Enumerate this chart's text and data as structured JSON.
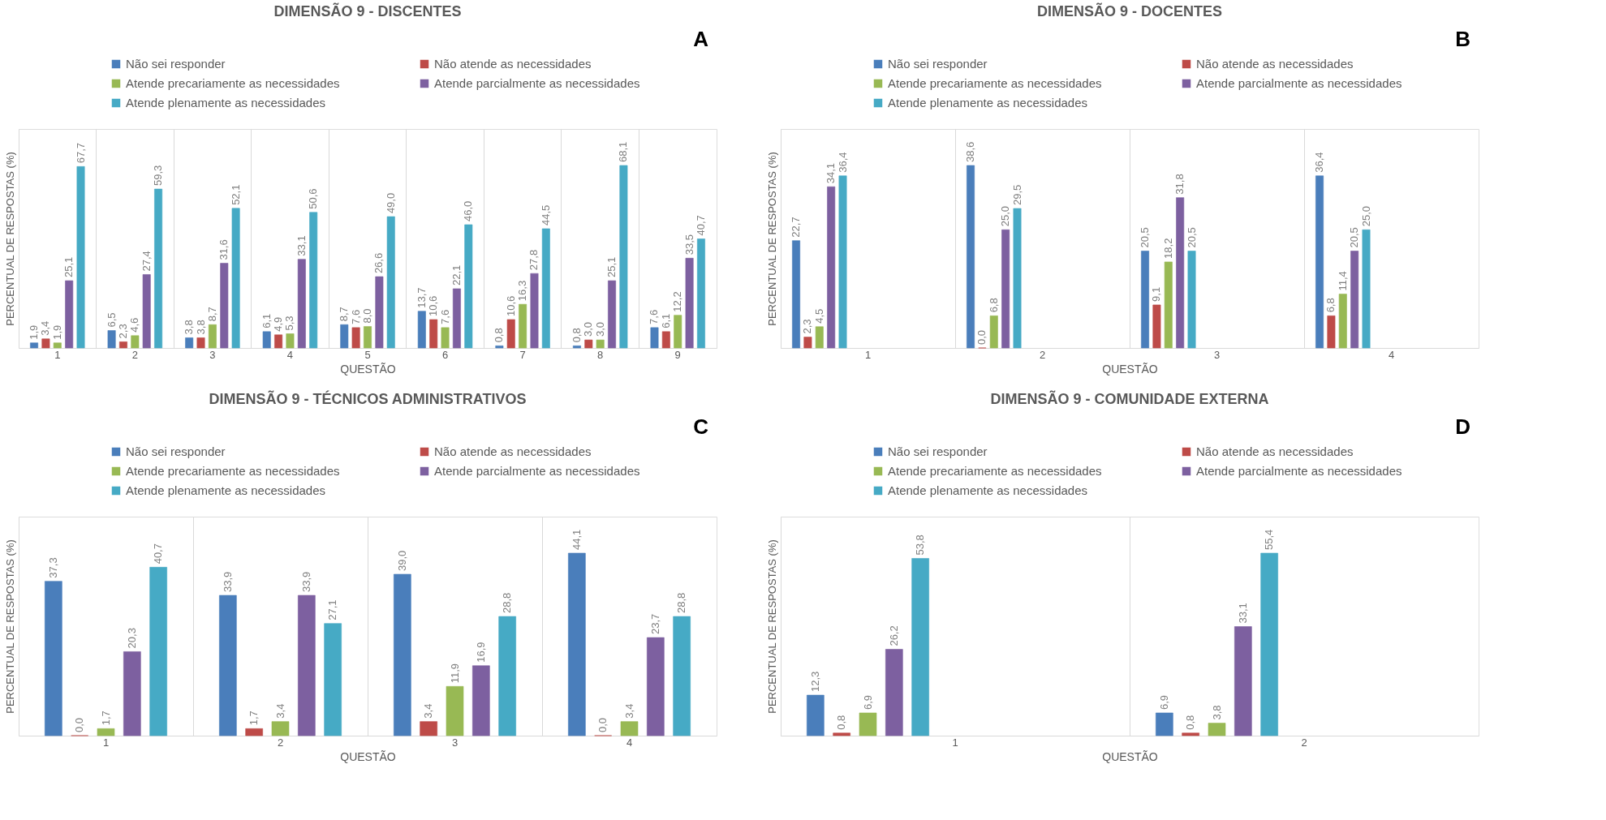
{
  "chart_data": [
    {
      "type": "bar",
      "title": "DIMENSÃO 9 - DISCENTES",
      "xlabel": "QUESTÃO",
      "ylabel": "PERCENTUAL DE RESPOSTAS (%)",
      "legend": "top",
      "grid": "x",
      "annotations": [
        "A"
      ],
      "categories": [
        "1",
        "2",
        "3",
        "4",
        "5",
        "6",
        "7",
        "8",
        "9"
      ],
      "series": [
        {
          "name": "Não sei responder",
          "color": "#4a7ebb",
          "values": [
            1.9,
            6.5,
            3.8,
            6.1,
            8.7,
            13.7,
            0.8,
            0.8,
            7.6
          ],
          "value_labels": [
            "1,9",
            "6,5",
            "3,8",
            "6,1",
            "8,7",
            "13,7",
            "0,8",
            "0,8",
            "7,6"
          ]
        },
        {
          "name": "Não atende as necessidades",
          "color": "#be4b48",
          "values": [
            3.4,
            2.3,
            3.8,
            4.9,
            7.6,
            10.6,
            10.6,
            3.0,
            6.1
          ],
          "value_labels": [
            "3,4",
            "2,3",
            "3,8",
            "4,9",
            "7,6",
            "10,6",
            "10,6",
            "3,0",
            "6,1"
          ]
        },
        {
          "name": "Atende precariamente as necessidades",
          "color": "#98b954",
          "values": [
            1.9,
            4.6,
            8.7,
            5.3,
            8.0,
            7.6,
            16.3,
            3.0,
            12.2
          ],
          "value_labels": [
            "1,9",
            "4,6",
            "8,7",
            "5,3",
            "8,0",
            "7,6",
            "16,3",
            "3,0",
            "12,2"
          ]
        },
        {
          "name": "Atende parcialmente as necessidades",
          "color": "#7d60a0",
          "values": [
            25.1,
            27.4,
            31.6,
            33.1,
            26.6,
            22.1,
            27.8,
            25.1,
            33.5
          ],
          "value_labels": [
            "25,1",
            "27,4",
            "31,6",
            "33,1",
            "26,6",
            "22,1",
            "27,8",
            "25,1",
            "33,5"
          ]
        },
        {
          "name": "Atende plenamente as necessidades",
          "color": "#46aac5",
          "values": [
            67.7,
            59.3,
            52.1,
            50.6,
            49.0,
            46.0,
            44.5,
            68.1,
            40.7
          ],
          "value_labels": [
            "67,7",
            "59,3",
            "52,1",
            "50,6",
            "49,0",
            "46,0",
            "44,5",
            "68,1",
            "40,7"
          ]
        }
      ]
    },
    {
      "type": "bar",
      "title": "DIMENSÃO 9 - DOCENTES",
      "xlabel": "QUESTÃO",
      "ylabel": "PERCENTUAL DE RESPOSTAS (%)",
      "legend": "top",
      "grid": "x",
      "annotations": [
        "B"
      ],
      "categories": [
        "1",
        "2",
        "3",
        "4"
      ],
      "series": [
        {
          "name": "Não sei responder",
          "color": "#4a7ebb",
          "values": [
            22.7,
            38.6,
            20.5,
            36.4
          ],
          "value_labels": [
            "22,7",
            "38,6",
            "20,5",
            "36,4"
          ]
        },
        {
          "name": "Não atende as necessidades",
          "color": "#be4b48",
          "values": [
            2.3,
            0.0,
            9.1,
            6.8
          ],
          "value_labels": [
            "2,3",
            "0,0",
            "9,1",
            "6,8"
          ]
        },
        {
          "name": "Atende precariamente as necessidades",
          "color": "#98b954",
          "values": [
            4.5,
            6.8,
            18.2,
            11.4
          ],
          "value_labels": [
            "4,5",
            "6,8",
            "18,2",
            "11,4"
          ]
        },
        {
          "name": "Atende parcialmente as necessidades",
          "color": "#7d60a0",
          "values": [
            34.1,
            25.0,
            31.8,
            20.5
          ],
          "value_labels": [
            "34,1",
            "25,0",
            "31,8",
            "20,5"
          ]
        },
        {
          "name": "Atende plenamente as necessidades",
          "color": "#46aac5",
          "values": [
            36.4,
            29.5,
            20.5,
            25.0
          ],
          "value_labels": [
            "36,4",
            "29,5",
            "20,5",
            "25,0"
          ]
        }
      ]
    },
    {
      "type": "bar",
      "title": "DIMENSÃO 9 - TÉCNICOS ADMINISTRATIVOS",
      "xlabel": "QUESTÃO",
      "ylabel": "PERCENTUAL DE RESPOSTAS (%)",
      "legend": "top",
      "grid": "x",
      "annotations": [
        "C"
      ],
      "categories": [
        "1",
        "2",
        "3",
        "4"
      ],
      "series": [
        {
          "name": "Não sei responder",
          "color": "#4a7ebb",
          "values": [
            37.3,
            33.9,
            39.0,
            44.1
          ],
          "value_labels": [
            "37,3",
            "33,9",
            "39,0",
            "44,1"
          ]
        },
        {
          "name": "Não atende as necessidades",
          "color": "#be4b48",
          "values": [
            0.0,
            1.7,
            3.4,
            0.0
          ],
          "value_labels": [
            "0,0",
            "1,7",
            "3,4",
            "0,0"
          ]
        },
        {
          "name": "Atende precariamente as necessidades",
          "color": "#98b954",
          "values": [
            1.7,
            3.4,
            11.9,
            3.4
          ],
          "value_labels": [
            "1,7",
            "3,4",
            "11,9",
            "3,4"
          ]
        },
        {
          "name": "Atende parcialmente as necessidades",
          "color": "#7d60a0",
          "values": [
            20.3,
            33.9,
            16.9,
            23.7
          ],
          "value_labels": [
            "20,3",
            "33,9",
            "16,9",
            "23,7"
          ]
        },
        {
          "name": "Atende plenamente as necessidades",
          "color": "#46aac5",
          "values": [
            40.7,
            27.1,
            28.8,
            28.8
          ],
          "value_labels": [
            "40,7",
            "27,1",
            "28,8",
            "28,8"
          ]
        }
      ]
    },
    {
      "type": "bar",
      "title": "DIMENSÃO 9 - COMUNIDADE EXTERNA",
      "xlabel": "QUESTÃO",
      "ylabel": "PERCENTUAL DE RESPOSTAS (%)",
      "legend": "top",
      "grid": "x",
      "annotations": [
        "D"
      ],
      "categories": [
        "1",
        "2"
      ],
      "series": [
        {
          "name": "Não sei responder",
          "color": "#4a7ebb",
          "values": [
            12.3,
            6.9
          ],
          "value_labels": [
            "12,3",
            "6,9"
          ]
        },
        {
          "name": "Não atende as necessidades",
          "color": "#be4b48",
          "values": [
            0.8,
            0.8
          ],
          "value_labels": [
            "0,8",
            "0,8"
          ]
        },
        {
          "name": "Atende precariamente as necessidades",
          "color": "#98b954",
          "values": [
            6.9,
            3.8
          ],
          "value_labels": [
            "6,9",
            "3,8"
          ]
        },
        {
          "name": "Atende parcialmente as necessidades",
          "color": "#7d60a0",
          "values": [
            26.2,
            33.1
          ],
          "value_labels": [
            "26,2",
            "33,1"
          ]
        },
        {
          "name": "Atende plenamente as necessidades",
          "color": "#46aac5",
          "values": [
            53.8,
            55.4
          ],
          "value_labels": [
            "53,8",
            "55,4"
          ]
        }
      ]
    }
  ]
}
